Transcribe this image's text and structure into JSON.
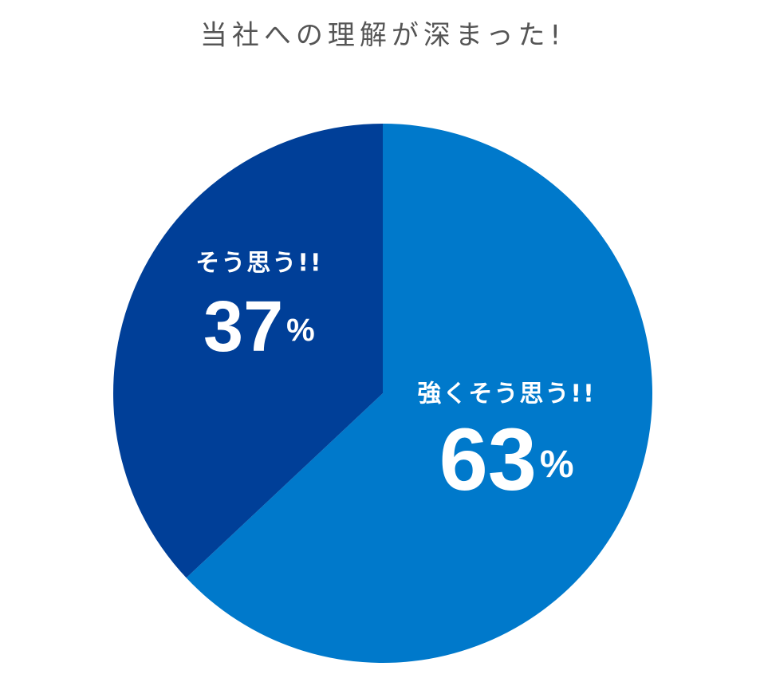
{
  "chart_data": {
    "type": "pie",
    "title": "当社への理解が深まった!",
    "categories": [
      "強くそう思う!!",
      "そう思う!!"
    ],
    "values": [
      63,
      37
    ],
    "value_labels": [
      "63%",
      "37%"
    ],
    "colors": [
      "#0079cb",
      "#003f98"
    ]
  }
}
